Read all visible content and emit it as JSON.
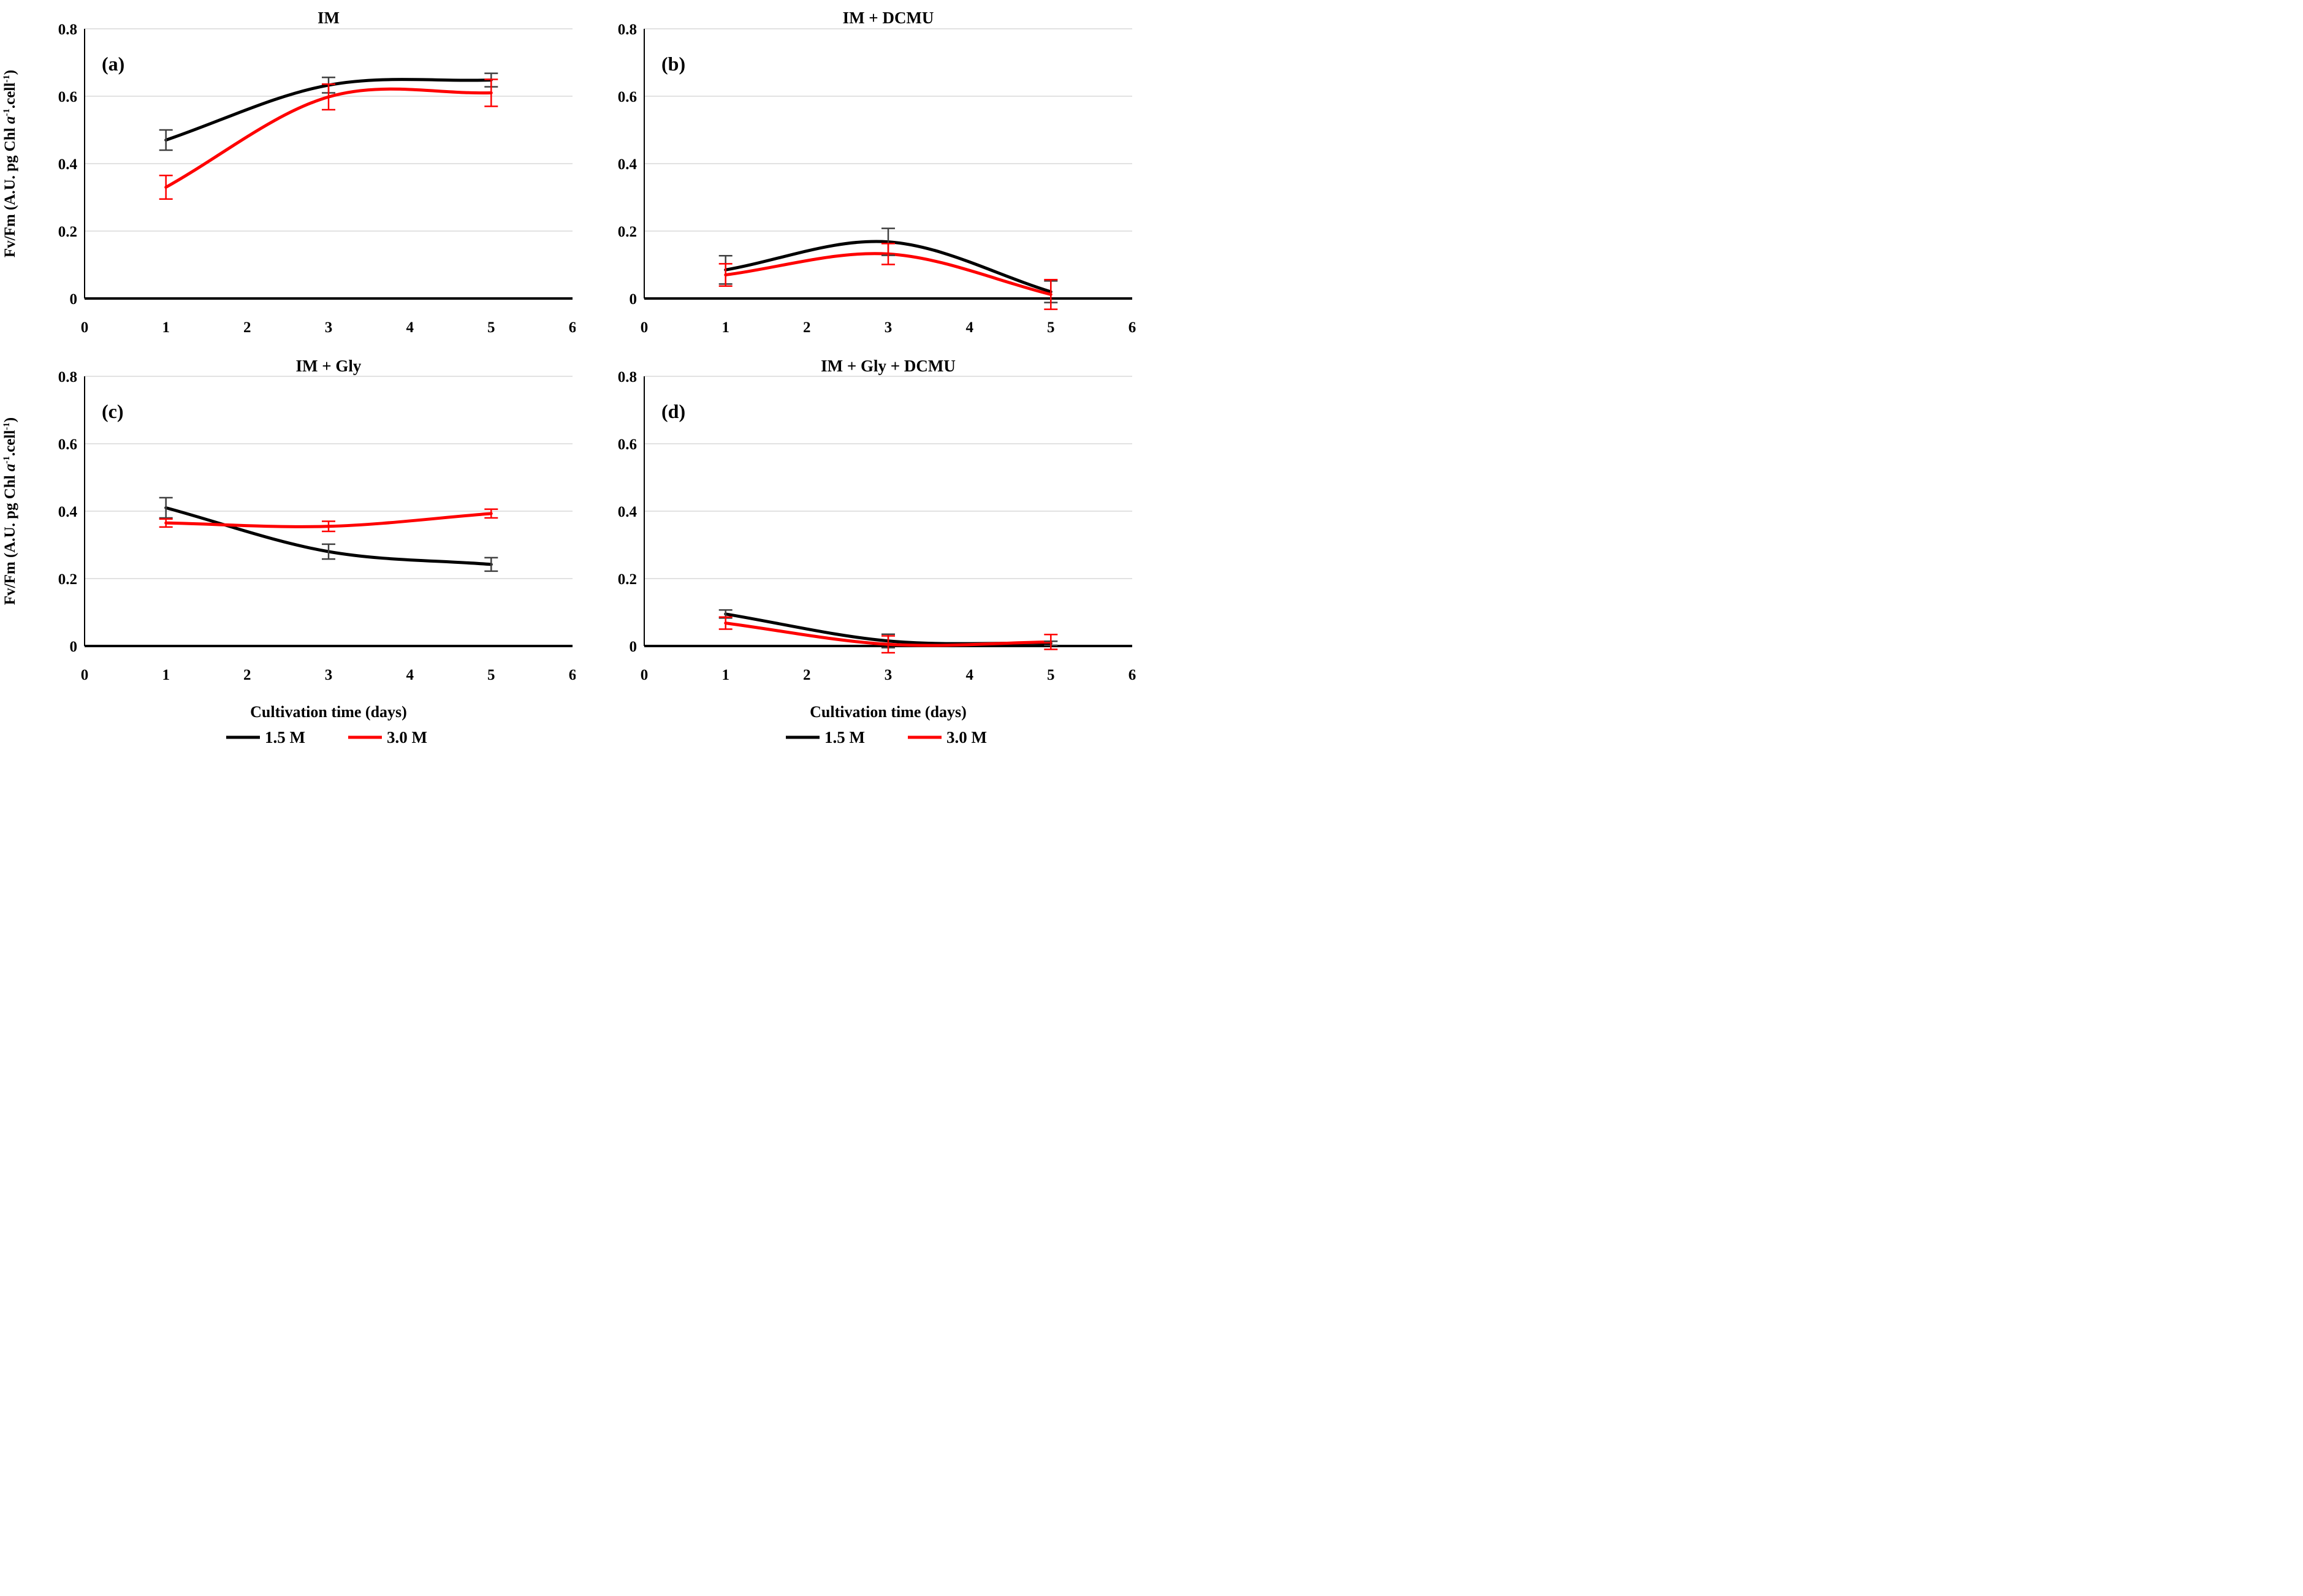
{
  "figure": {
    "ylabel": "Fv/Fm (A.U. pg Chl a⁻¹.cell⁻¹)",
    "ylabel_parts": [
      {
        "text": "Fv/Fm (A.U. pg Chl ",
        "style": "normal"
      },
      {
        "text": "a",
        "style": "italic"
      },
      {
        "text": "-1",
        "style": "sup"
      },
      {
        "text": ".cell",
        "style": "normal"
      },
      {
        "text": "-1",
        "style": "sup"
      },
      {
        "text": ")",
        "style": "normal"
      }
    ],
    "xlabel": "Cultivation time (days)",
    "legend": {
      "position": "bottom",
      "items": [
        {
          "label": "1.5 M",
          "color": "#000000"
        },
        {
          "label": "3.0 M",
          "color": "#fe0000"
        }
      ]
    },
    "colors": {
      "series_black": "#000000",
      "series_red": "#fe0000",
      "black_error_bar": "#404040",
      "gridline": "#d9d9d9",
      "axis": "#000000"
    }
  },
  "chart_data": [
    {
      "type": "line",
      "panel_label": "(a)",
      "title": "IM",
      "x": [
        1,
        3,
        5
      ],
      "xlim": [
        0,
        6
      ],
      "ylim": [
        0,
        0.8
      ],
      "xticks": [
        "0",
        "1",
        "2",
        "3",
        "4",
        "5",
        "6"
      ],
      "yticks": [
        "0",
        "0.2",
        "0.4",
        "0.6",
        "0.8"
      ],
      "grid": true,
      "show_ylabel": true,
      "show_xlabel": false,
      "show_legend": false,
      "series": [
        {
          "name": "1.5 M",
          "color": "#000000",
          "error_color": "#404040",
          "values": [
            0.47,
            0.633,
            0.648
          ],
          "errors": [
            0.03,
            0.023,
            0.02
          ]
        },
        {
          "name": "3.0 M",
          "color": "#fe0000",
          "error_color": "#fe0000",
          "values": [
            0.33,
            0.598,
            0.61
          ],
          "errors": [
            0.035,
            0.038,
            0.04
          ]
        }
      ]
    },
    {
      "type": "line",
      "panel_label": "(b)",
      "title": "IM + DCMU",
      "x": [
        1,
        3,
        5
      ],
      "xlim": [
        0,
        6
      ],
      "ylim": [
        0,
        0.8
      ],
      "xticks": [
        "0",
        "1",
        "2",
        "3",
        "4",
        "5",
        "6"
      ],
      "yticks": [
        "0",
        "0.2",
        "0.4",
        "0.6",
        "0.8"
      ],
      "grid": true,
      "show_ylabel": false,
      "show_xlabel": false,
      "show_legend": false,
      "series": [
        {
          "name": "1.5 M",
          "color": "#000000",
          "error_color": "#404040",
          "values": [
            0.085,
            0.168,
            0.02
          ],
          "errors": [
            0.042,
            0.04,
            0.032
          ]
        },
        {
          "name": "3.0 M",
          "color": "#fe0000",
          "error_color": "#fe0000",
          "values": [
            0.07,
            0.132,
            0.012
          ],
          "errors": [
            0.033,
            0.031,
            0.044
          ]
        }
      ]
    },
    {
      "type": "line",
      "panel_label": "(c)",
      "title": "IM + Gly",
      "x": [
        1,
        3,
        5
      ],
      "xlim": [
        0,
        6
      ],
      "ylim": [
        0,
        0.8
      ],
      "xticks": [
        "0",
        "1",
        "2",
        "3",
        "4",
        "5",
        "6"
      ],
      "yticks": [
        "0",
        "0.2",
        "0.4",
        "0.6",
        "0.8"
      ],
      "grid": true,
      "show_ylabel": true,
      "show_xlabel": true,
      "show_legend": true,
      "series": [
        {
          "name": "1.5 M",
          "color": "#000000",
          "error_color": "#404040",
          "values": [
            0.41,
            0.28,
            0.242
          ],
          "errors": [
            0.03,
            0.022,
            0.02
          ]
        },
        {
          "name": "3.0 M",
          "color": "#fe0000",
          "error_color": "#fe0000",
          "values": [
            0.365,
            0.355,
            0.393
          ],
          "errors": [
            0.012,
            0.015,
            0.013
          ]
        }
      ]
    },
    {
      "type": "line",
      "panel_label": "(d)",
      "title": "IM + Gly + DCMU",
      "x": [
        1,
        3,
        5
      ],
      "xlim": [
        0,
        6
      ],
      "ylim": [
        0,
        0.8
      ],
      "xticks": [
        "0",
        "1",
        "2",
        "3",
        "4",
        "5",
        "6"
      ],
      "yticks": [
        "0",
        "0.2",
        "0.4",
        "0.6",
        "0.8"
      ],
      "grid": true,
      "show_ylabel": false,
      "show_xlabel": true,
      "show_legend": true,
      "series": [
        {
          "name": "1.5 M",
          "color": "#000000",
          "error_color": "#404040",
          "values": [
            0.095,
            0.015,
            0.008
          ],
          "errors": [
            0.012,
            0.02,
            0.006
          ]
        },
        {
          "name": "3.0 M",
          "color": "#fe0000",
          "error_color": "#fe0000",
          "values": [
            0.068,
            0.005,
            0.012
          ],
          "errors": [
            0.018,
            0.025,
            0.022
          ]
        }
      ]
    }
  ]
}
